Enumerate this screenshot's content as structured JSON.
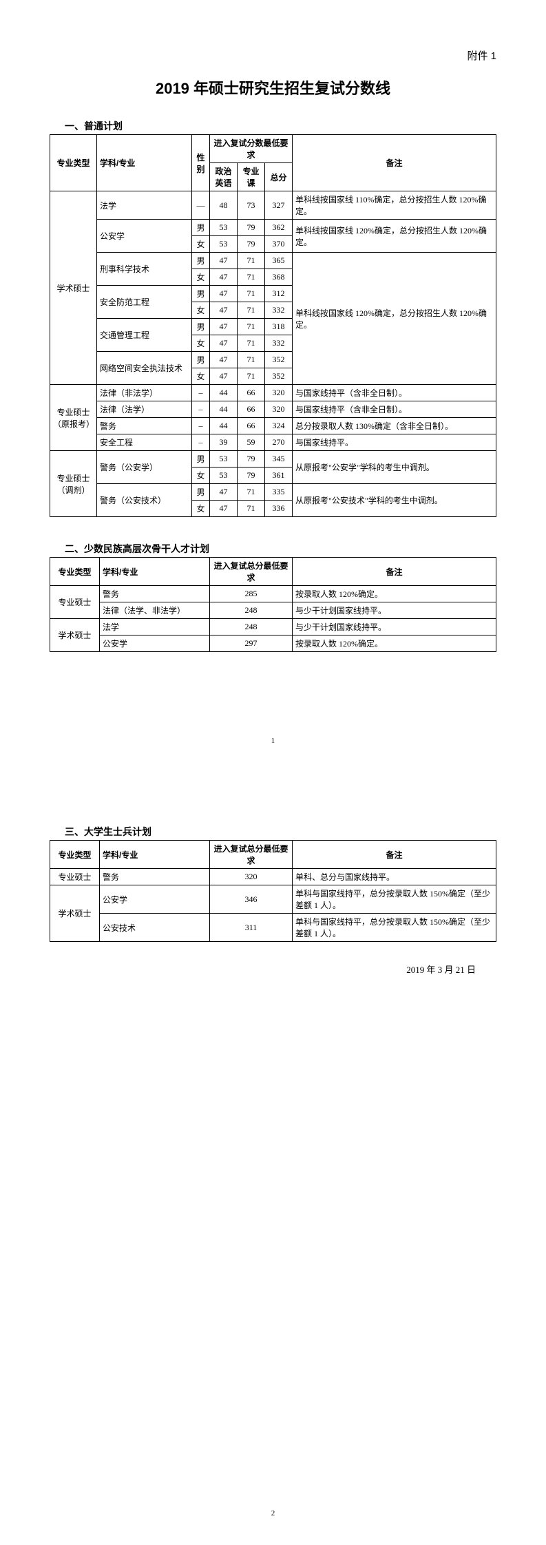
{
  "attachment": "附件 1",
  "main_title": "2019 年硕士研究生招生复试分数线",
  "date": "2019 年 3 月 21 日",
  "page1_num": "1",
  "page2_num": "2",
  "section1": {
    "title": "一、普通计划",
    "headers": {
      "type": "专业类型",
      "subject": "学科/专业",
      "gender": "性别",
      "req_group": "进入复试分数最低要求",
      "politics": "政治英语",
      "major": "专业课",
      "total": "总分",
      "note": "备注"
    },
    "rows": [
      {
        "type": "学术硕士",
        "type_rs": 11,
        "subj": "法学",
        "subj_rs": 1,
        "sex": "—",
        "p": "48",
        "m": "73",
        "t": "327",
        "note": "单科线按国家线 110%确定，总分按招生人数 120%确定。",
        "note_rs": 1
      },
      {
        "subj": "公安学",
        "subj_rs": 2,
        "sex": "男",
        "p": "53",
        "m": "79",
        "t": "362",
        "note": "单科线按国家线 120%确定，总分按招生人数 120%确定。",
        "note_rs": 2
      },
      {
        "sex": "女",
        "p": "53",
        "m": "79",
        "t": "370"
      },
      {
        "subj": "刑事科学技术",
        "subj_rs": 2,
        "sex": "男",
        "p": "47",
        "m": "71",
        "t": "365",
        "note": "单科线按国家线 120%确定，总分按招生人数 120%确定。",
        "note_rs": 8
      },
      {
        "sex": "女",
        "p": "47",
        "m": "71",
        "t": "368"
      },
      {
        "subj": "安全防范工程",
        "subj_rs": 2,
        "sex": "男",
        "p": "47",
        "m": "71",
        "t": "312"
      },
      {
        "sex": "女",
        "p": "47",
        "m": "71",
        "t": "332"
      },
      {
        "subj": "交通管理工程",
        "subj_rs": 2,
        "sex": "男",
        "p": "47",
        "m": "71",
        "t": "318"
      },
      {
        "sex": "女",
        "p": "47",
        "m": "71",
        "t": "332"
      },
      {
        "subj": "网络空间安全执法技术",
        "subj_rs": 2,
        "sex": "男",
        "p": "47",
        "m": "71",
        "t": "352"
      },
      {
        "sex": "女",
        "p": "47",
        "m": "71",
        "t": "352"
      },
      {
        "type": "专业硕士（原报考）",
        "type_rs": 4,
        "subj": "法律（非法学）",
        "subj_rs": 1,
        "sex": "–",
        "p": "44",
        "m": "66",
        "t": "320",
        "note": "与国家线持平（含非全日制）。",
        "note_rs": 1
      },
      {
        "subj": "法律（法学）",
        "subj_rs": 1,
        "sex": "–",
        "p": "44",
        "m": "66",
        "t": "320",
        "note": "与国家线持平（含非全日制）。",
        "note_rs": 1
      },
      {
        "subj": "警务",
        "subj_rs": 1,
        "sex": "–",
        "p": "44",
        "m": "66",
        "t": "324",
        "note": "总分按录取人数 130%确定（含非全日制）。",
        "note_rs": 1
      },
      {
        "subj": "安全工程",
        "subj_rs": 1,
        "sex": "–",
        "p": "39",
        "m": "59",
        "t": "270",
        "note": "与国家线持平。",
        "note_rs": 1
      },
      {
        "type": "专业硕士（调剂）",
        "type_rs": 4,
        "subj": "警务（公安学）",
        "subj_rs": 2,
        "sex": "男",
        "p": "53",
        "m": "79",
        "t": "345",
        "note": "从原报考\"公安学\"学科的考生中调剂。",
        "note_rs": 2
      },
      {
        "sex": "女",
        "p": "53",
        "m": "79",
        "t": "361"
      },
      {
        "subj": "警务（公安技术）",
        "subj_rs": 2,
        "sex": "男",
        "p": "47",
        "m": "71",
        "t": "335",
        "note": "从原报考\"公安技术\"学科的考生中调剂。",
        "note_rs": 2
      },
      {
        "sex": "女",
        "p": "47",
        "m": "71",
        "t": "336"
      }
    ]
  },
  "section2": {
    "title": "二、少数民族高层次骨干人才计划",
    "headers": {
      "type": "专业类型",
      "subject": "学科/专业",
      "score": "进入复试总分最低要求",
      "note": "备注"
    },
    "rows": [
      {
        "type": "专业硕士",
        "type_rs": 2,
        "subj": "警务",
        "score": "285",
        "note": "按录取人数 120%确定。"
      },
      {
        "subj": "法律（法学、非法学）",
        "score": "248",
        "note": "与少干计划国家线持平。"
      },
      {
        "type": "学术硕士",
        "type_rs": 2,
        "subj": "法学",
        "score": "248",
        "note": "与少干计划国家线持平。"
      },
      {
        "subj": "公安学",
        "score": "297",
        "note": "按录取人数 120%确定。"
      }
    ]
  },
  "section3": {
    "title": "三、大学生士兵计划",
    "headers": {
      "type": "专业类型",
      "subject": "学科/专业",
      "score": "进入复试总分最低要求",
      "note": "备注"
    },
    "rows": [
      {
        "type": "专业硕士",
        "type_rs": 1,
        "subj": "警务",
        "score": "320",
        "note": "单科、总分与国家线持平。"
      },
      {
        "type": "学术硕士",
        "type_rs": 2,
        "subj": "公安学",
        "score": "346",
        "note": "单科与国家线持平，总分按录取人数 150%确定（至少差额 1 人）。"
      },
      {
        "subj": "公安技术",
        "score": "311",
        "note": "单科与国家线持平，总分按录取人数 150%确定（至少差额 1 人）。"
      }
    ]
  }
}
